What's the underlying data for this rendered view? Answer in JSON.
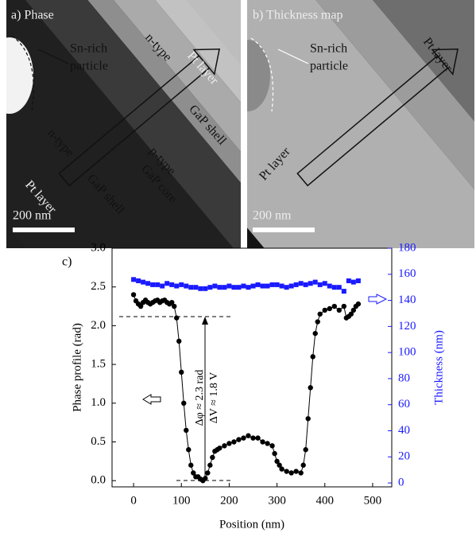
{
  "images": [
    {
      "label": "a) Phase",
      "scale_bar": "200 nm",
      "annotations": [
        "Sn-rich",
        "particle",
        "n-type",
        "Pt layer",
        "GaP shell",
        "n-type",
        "p-type",
        "GaP core",
        "GaP shell",
        "Pt layer"
      ]
    },
    {
      "label": "b) Thickness map",
      "scale_bar": "200 nm",
      "annotations": [
        "Sn-rich",
        "particle",
        "Pt layer",
        "Pt layer"
      ]
    }
  ],
  "chart_data": {
    "type": "line",
    "panel_label": "c)",
    "xlabel": "Position (nm)",
    "ylabel": "Phase profile (rad)",
    "y2label": "Thickness (nm)",
    "annotations": [
      "Δφ ≈ 2.3 rad",
      "ΔV ≈ 1.8 V"
    ],
    "xlim": [
      -45,
      540
    ],
    "xticks": [
      0,
      100,
      200,
      300,
      400,
      500
    ],
    "ylim": [
      -0.08,
      3.0
    ],
    "yticks": [
      {
        "value": 0,
        "label": "0.0"
      },
      {
        "value": 0.5,
        "label": "0.5"
      },
      {
        "value": 1,
        "label": "1.0"
      },
      {
        "value": 1.5,
        "label": "1.5"
      },
      {
        "value": 2,
        "label": "2.0"
      },
      {
        "value": 2.5,
        "label": "2.5"
      },
      {
        "value": 3,
        "label": "3.0"
      }
    ],
    "y2lim": [
      -3,
      180
    ],
    "y2ticks": [
      0,
      20,
      40,
      60,
      80,
      100,
      120,
      140,
      160,
      180
    ],
    "y2color": "#1a1aff",
    "series": [
      {
        "color": "#000000",
        "marker": "circle",
        "axis": "y",
        "x": [
          0,
          5,
          10,
          15,
          20,
          25,
          30,
          35,
          40,
          45,
          50,
          55,
          60,
          65,
          70,
          75,
          80,
          85,
          90,
          95,
          100,
          105,
          110,
          115,
          120,
          125,
          130,
          135,
          140,
          145,
          150,
          155,
          160,
          165,
          170,
          175,
          180,
          190,
          200,
          210,
          220,
          230,
          240,
          250,
          260,
          270,
          280,
          290,
          295,
          300,
          305,
          310,
          320,
          330,
          340,
          350,
          355,
          360,
          365,
          370,
          375,
          380,
          385,
          390,
          400,
          410,
          420,
          430,
          440,
          445,
          450,
          455,
          460,
          465,
          470
        ],
        "values": [
          2.4,
          2.32,
          2.28,
          2.25,
          2.3,
          2.33,
          2.3,
          2.28,
          2.3,
          2.32,
          2.33,
          2.3,
          2.32,
          2.33,
          2.3,
          2.28,
          2.3,
          2.25,
          2.1,
          1.8,
          1.4,
          1.0,
          0.65,
          0.4,
          0.2,
          0.1,
          0.05,
          0.05,
          0.02,
          0.0,
          0.03,
          0.1,
          0.2,
          0.3,
          0.38,
          0.4,
          0.42,
          0.45,
          0.48,
          0.5,
          0.53,
          0.55,
          0.58,
          0.55,
          0.55,
          0.5,
          0.48,
          0.45,
          0.35,
          0.25,
          0.2,
          0.15,
          0.12,
          0.1,
          0.12,
          0.1,
          0.2,
          0.4,
          0.8,
          1.2,
          1.6,
          1.9,
          2.05,
          2.15,
          2.2,
          2.22,
          2.25,
          2.2,
          2.25,
          2.1,
          2.12,
          2.15,
          2.2,
          2.25,
          2.28
        ]
      },
      {
        "color": "#1a1aff",
        "marker": "square",
        "axis": "y2",
        "x": [
          0,
          10,
          20,
          30,
          40,
          50,
          60,
          70,
          80,
          90,
          100,
          110,
          120,
          130,
          140,
          150,
          160,
          170,
          180,
          190,
          200,
          210,
          220,
          230,
          240,
          250,
          260,
          270,
          280,
          290,
          300,
          310,
          320,
          330,
          340,
          350,
          360,
          370,
          380,
          390,
          400,
          410,
          420,
          430,
          440,
          450,
          460,
          470
        ],
        "values": [
          156,
          155,
          154,
          153,
          152,
          152,
          151,
          153,
          152,
          151,
          152,
          151,
          150,
          150,
          149,
          149,
          150,
          151,
          150,
          150,
          151,
          150,
          150,
          151,
          150,
          151,
          152,
          151,
          151,
          152,
          152,
          151,
          150,
          151,
          152,
          153,
          152,
          153,
          154,
          152,
          153,
          151,
          150,
          150,
          147,
          155,
          154,
          155
        ]
      }
    ]
  }
}
